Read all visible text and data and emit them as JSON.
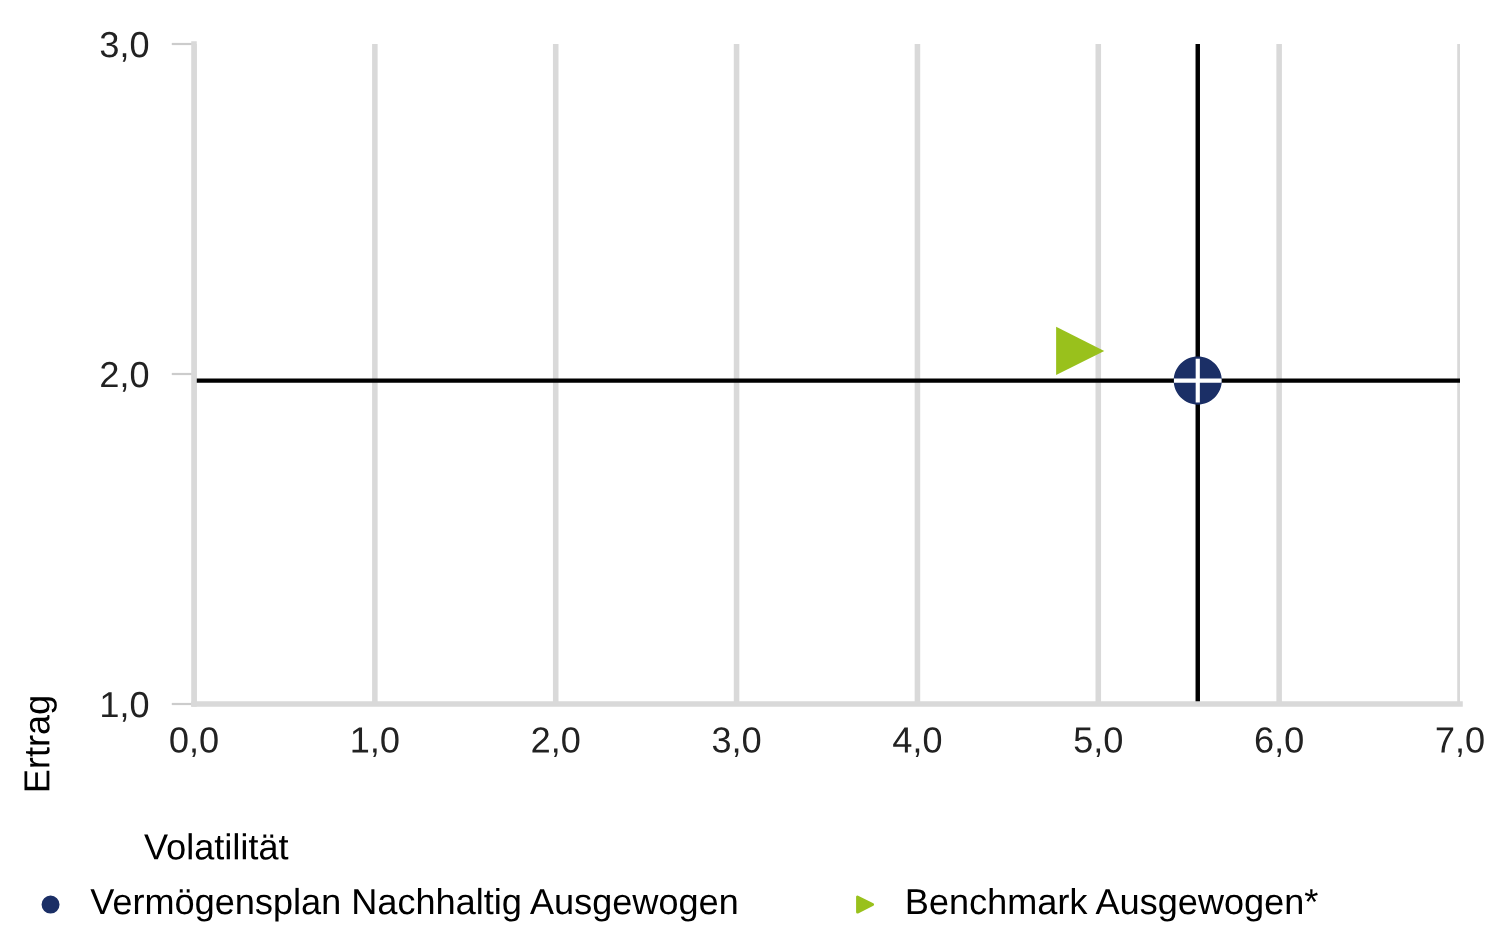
{
  "chart_data": {
    "type": "scatter",
    "xlabel": "Volatilität",
    "ylabel": "Ertrag",
    "xlim": [
      0,
      7
    ],
    "ylim": [
      1,
      3
    ],
    "xticks": [
      {
        "value": 0,
        "label": "0,0"
      },
      {
        "value": 1,
        "label": "1,0"
      },
      {
        "value": 2,
        "label": "2,0"
      },
      {
        "value": 3,
        "label": "3,0"
      },
      {
        "value": 4,
        "label": "4,0"
      },
      {
        "value": 5,
        "label": "5,0"
      },
      {
        "value": 6,
        "label": "6,0"
      },
      {
        "value": 7,
        "label": "7,0"
      }
    ],
    "yticks": [
      {
        "value": 1,
        "label": "1,0"
      },
      {
        "value": 2,
        "label": "2,0"
      },
      {
        "value": 3,
        "label": "3,0"
      }
    ],
    "grid": "x",
    "legend": "bottom",
    "series": [
      {
        "name": "Vermögensplan Nachhaltig Ausgewogen",
        "color": "#1b2f66",
        "marker": "circle",
        "x": [
          5.55
        ],
        "values": [
          1.98
        ]
      },
      {
        "name": "Benchmark Ausgewogen*",
        "color": "#99c11c",
        "marker": "triangle",
        "x": [
          4.9
        ],
        "values": [
          2.07
        ]
      }
    ],
    "ref_lines": [
      {
        "axis": "x",
        "value": 5.55,
        "color": "#000000"
      },
      {
        "axis": "y",
        "value": 1.98,
        "color": "#000000"
      }
    ]
  }
}
